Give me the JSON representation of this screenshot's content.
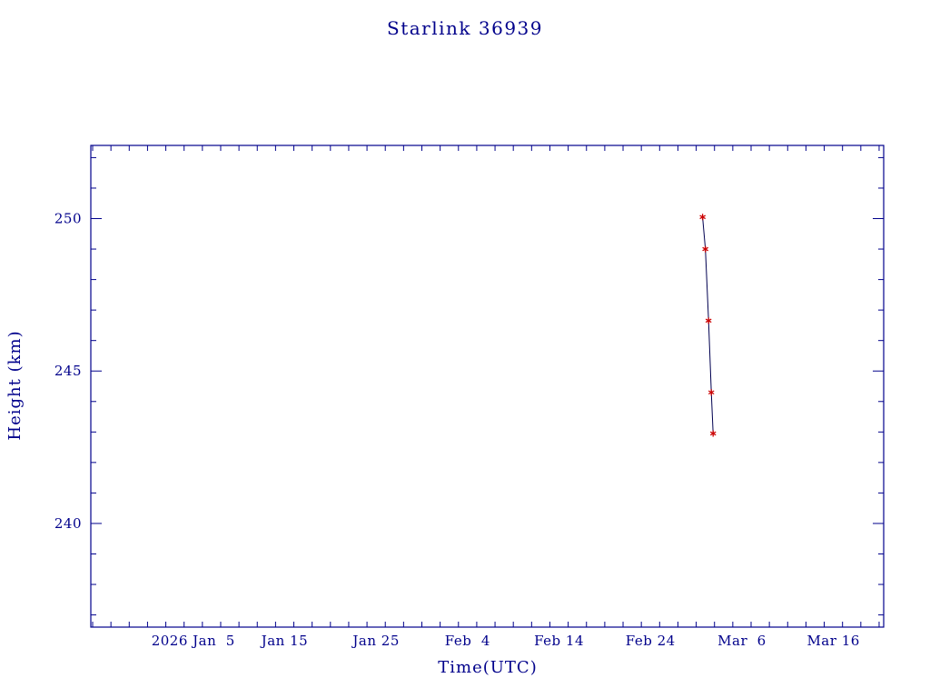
{
  "page": {
    "background": "#ffffff"
  },
  "chart_data": {
    "type": "line",
    "title": "Starlink 36939",
    "xlabel": "Time(UTC)",
    "ylabel": "Height (km)",
    "accent_color": "#00008b",
    "line_color": "#000050",
    "marker_color": "#cc0000",
    "marker": "asterisk",
    "grid": false,
    "legend": "none",
    "xlim_days": [
      -6.2,
      80.5
    ],
    "ylim": [
      236.6,
      252.4
    ],
    "x_major_ticks": [
      {
        "day": 5,
        "label": "2026 Jan  5"
      },
      {
        "day": 15,
        "label": "Jan 15"
      },
      {
        "day": 25,
        "label": "Jan 25"
      },
      {
        "day": 35,
        "label": "Feb  4"
      },
      {
        "day": 45,
        "label": "Feb 14"
      },
      {
        "day": 55,
        "label": "Feb 24"
      },
      {
        "day": 65,
        "label": "Mar  6"
      },
      {
        "day": 75,
        "label": "Mar 16"
      }
    ],
    "x_minor_step_days": 2,
    "y_major_ticks": [
      240,
      245,
      250
    ],
    "y_minor_step": 1,
    "series": [
      {
        "name": "height-km",
        "x_days": [
          60.7,
          61.0,
          61.35,
          61.65,
          61.85
        ],
        "y": [
          250.05,
          249.0,
          246.65,
          244.3,
          242.95
        ]
      }
    ]
  }
}
